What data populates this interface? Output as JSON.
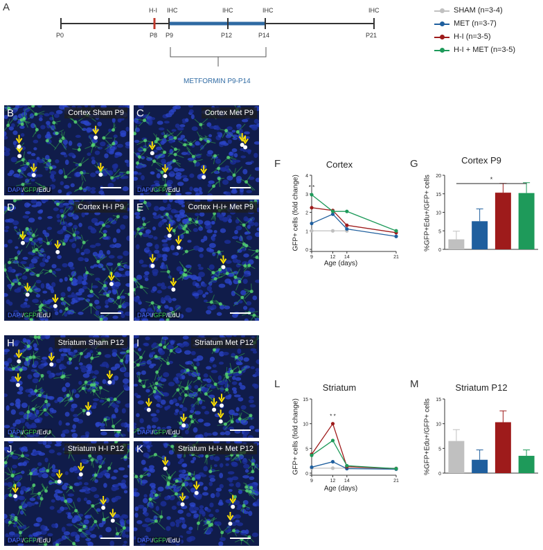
{
  "panel_labels": {
    "A": "A",
    "F": "F",
    "G": "G",
    "L": "L",
    "M": "M"
  },
  "timeline": {
    "ticks": [
      "P0",
      "P8",
      "P9",
      "P12",
      "P14",
      "P21"
    ],
    "events": [
      "H-I",
      "IHC",
      "IHC",
      "IHC",
      "IHC"
    ],
    "treatment": "METFORMIN P9-P14",
    "colors": {
      "line": "#333333",
      "injury": "#c0392b",
      "treatment": "#2f6aa3"
    }
  },
  "legend": [
    {
      "label": "SHAM (n=3-4)",
      "color": "#c0c0c0"
    },
    {
      "label": "MET (n=3-7)",
      "color": "#1f5f9e"
    },
    {
      "label": "H-I (n=3-5)",
      "color": "#9e1b1b"
    },
    {
      "label": "H-I + MET (n=3-5)",
      "color": "#1e9a5a"
    }
  ],
  "micrographs": [
    {
      "letter": "B",
      "title": "Cortex Sham P9"
    },
    {
      "letter": "C",
      "title": "Cortex Met P9"
    },
    {
      "letter": "D",
      "title": "Cortex H-I P9"
    },
    {
      "letter": "E",
      "title": "Cortex H-I+ Met P9"
    },
    {
      "letter": "H",
      "title": "Striatum Sham P12"
    },
    {
      "letter": "I",
      "title": "Striatum Met P12"
    },
    {
      "letter": "J",
      "title": "Striatum H-I P12"
    },
    {
      "letter": "K",
      "title": "Striatum H-I+ Met P12"
    }
  ],
  "stain": {
    "dapi": "DAPI",
    "sep1": "/",
    "gfp": "GFP",
    "sep2": "/",
    "edu": "EdU"
  },
  "chart_data": [
    {
      "panel": "F",
      "type": "line",
      "title": "Cortex",
      "xlabel": "Age (days)",
      "ylabel": "GFP+ cells (fold change)",
      "x": [
        9,
        12,
        14,
        21
      ],
      "xticks": [
        "9",
        "12",
        "14",
        "21"
      ],
      "ylim": [
        0,
        4
      ],
      "yticks": [
        "0",
        "1",
        "2",
        "3",
        "4"
      ],
      "annotation": "* *",
      "series": [
        {
          "name": "SHAM (n=3-4)",
          "color": "#c0c0c0",
          "values": [
            1.0,
            1.0,
            1.0,
            null
          ]
        },
        {
          "name": "MET (n=3-7)",
          "color": "#1f5f9e",
          "values": [
            1.4,
            1.9,
            1.1,
            0.7
          ]
        },
        {
          "name": "H-I (n=3-5)",
          "color": "#9e1b1b",
          "values": [
            2.25,
            2.1,
            1.3,
            0.9
          ]
        },
        {
          "name": "H-I + MET (n=3-5)",
          "color": "#1e9a5a",
          "values": [
            2.95,
            2.05,
            2.05,
            1.0
          ]
        }
      ]
    },
    {
      "panel": "G",
      "type": "bar",
      "title": "Cortex P9",
      "ylabel": "%GFP+Edu+/GFP+ cells",
      "categories": [
        "SHAM",
        "MET",
        "H-I",
        "H-I + MET"
      ],
      "values": [
        2.7,
        7.6,
        15.3,
        15.2
      ],
      "errors": [
        2.2,
        3.3,
        2.5,
        2.8
      ],
      "colors": [
        "#c0c0c0",
        "#1f5f9e",
        "#9e1b1b",
        "#1e9a5a"
      ],
      "ylim": [
        0,
        20
      ],
      "yticks": [
        "0",
        "5",
        "10",
        "15",
        "20"
      ],
      "annotation": "*"
    },
    {
      "panel": "L",
      "type": "line",
      "title": "Striatum",
      "xlabel": "Age (days)",
      "ylabel": "GFP+ cells (fold change)",
      "x": [
        9,
        12,
        14,
        21
      ],
      "xticks": [
        "9",
        "12",
        "14",
        "21"
      ],
      "ylim": [
        0,
        15
      ],
      "yticks": [
        "0",
        "5",
        "10",
        "15"
      ],
      "annotation": "* *",
      "series": [
        {
          "name": "SHAM (n=3-4)",
          "color": "#c0c0c0",
          "values": [
            1.0,
            1.0,
            1.0,
            1.0
          ]
        },
        {
          "name": "MET (n=3-7)",
          "color": "#1f5f9e",
          "values": [
            1.2,
            2.3,
            0.9,
            0.8
          ]
        },
        {
          "name": "H-I (n=3-5)",
          "color": "#9e1b1b",
          "values": [
            3.8,
            10.0,
            1.3,
            0.9
          ]
        },
        {
          "name": "H-I + MET (n=3-5)",
          "color": "#1e9a5a",
          "values": [
            3.6,
            6.6,
            1.5,
            0.9
          ]
        }
      ]
    },
    {
      "panel": "M",
      "type": "bar",
      "title": "Striatum P12",
      "ylabel": "%GFP+Edu+/GFP+ cells",
      "categories": [
        "SHAM",
        "MET",
        "H-I",
        "H-I + MET"
      ],
      "values": [
        6.5,
        2.7,
        10.3,
        3.5
      ],
      "errors": [
        2.3,
        2.0,
        2.3,
        1.2
      ],
      "colors": [
        "#c0c0c0",
        "#1f5f9e",
        "#9e1b1b",
        "#1e9a5a"
      ],
      "ylim": [
        0,
        15
      ],
      "yticks": [
        "0",
        "5",
        "10",
        "15"
      ],
      "annotation": ""
    }
  ]
}
